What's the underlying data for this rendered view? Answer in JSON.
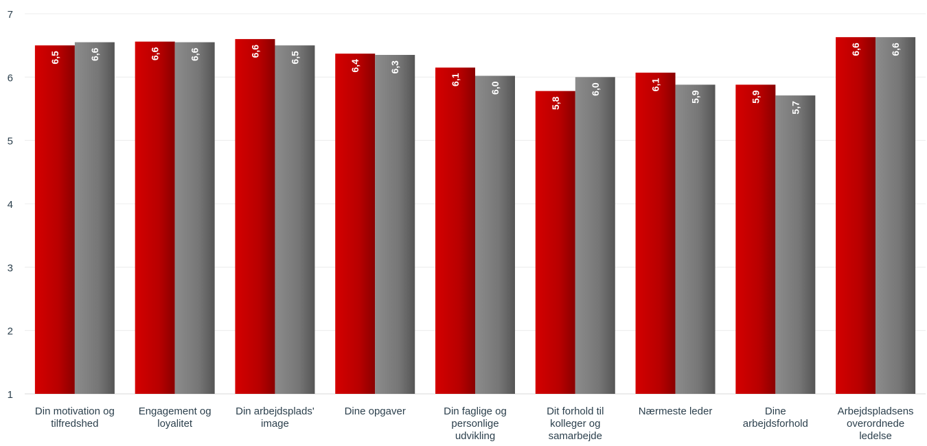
{
  "chart_data": {
    "type": "bar",
    "title": "",
    "xlabel": "",
    "ylabel": "",
    "ylim": [
      1,
      7
    ],
    "yticks": [
      1,
      2,
      3,
      4,
      5,
      6,
      7
    ],
    "grid": true,
    "legend": "none",
    "categories": [
      [
        "Din motivation og",
        "tilfredshed"
      ],
      [
        "Engagement og",
        "loyalitet"
      ],
      [
        "Din arbejdsplads'",
        "image"
      ],
      [
        "Dine opgaver"
      ],
      [
        "Din faglige og",
        "personlige",
        "udvikling"
      ],
      [
        "Dit forhold til",
        "kolleger og",
        "samarbejde"
      ],
      [
        "Nærmeste leder"
      ],
      [
        "Dine",
        "arbejdsforhold"
      ],
      [
        "Arbejdspladsens",
        "overordnede",
        "ledelse"
      ]
    ],
    "series": [
      {
        "color": "#c00000",
        "values": [
          6.5,
          6.56,
          6.6,
          6.37,
          6.15,
          5.78,
          6.07,
          5.88,
          6.63
        ],
        "labels": [
          "6,5",
          "6,6",
          "6,6",
          "6,4",
          "6,1",
          "5,8",
          "6,1",
          "5,9",
          "6,6"
        ]
      },
      {
        "color": "#7f7f7f",
        "values": [
          6.55,
          6.55,
          6.5,
          6.35,
          6.02,
          6.0,
          5.88,
          5.71,
          6.63
        ],
        "labels": [
          "6,6",
          "6,6",
          "6,5",
          "6,3",
          "6,0",
          "6,0",
          "5,9",
          "5,7",
          "6,6"
        ]
      }
    ]
  }
}
